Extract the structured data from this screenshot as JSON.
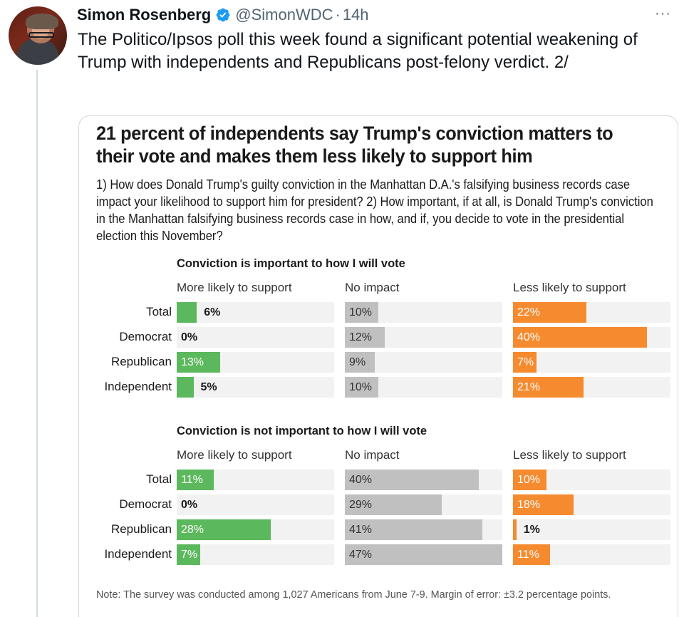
{
  "tweet": {
    "author_name": "Simon Rosenberg",
    "verified": true,
    "handle": "@SimonWDC",
    "separator": "·",
    "time": "14h",
    "more_icon": "···",
    "text": "The Politico/Ipsos poll this week found a significant potential weakening of Trump with independents and Republicans post-felony verdict.  2/"
  },
  "card": {
    "title": "21 percent of independents say Trump's conviction matters to their vote and makes them less likely to support him",
    "subtitle": "1) How does Donald Trump's guilty conviction in the Manhattan D.A.'s falsifying business records case impact your likelihood to support him for president? 2) How important, if at all, is Donald Trump's conviction in the Manhattan falsifying business records case in how, and if, you decide to vote in the presidential election this November?",
    "note": "Note: The survey was conducted among 1,027 Americans from June 7-9. Margin of error: ±3.2 percentage points."
  },
  "colors": {
    "more_likely": "#5cb85c",
    "no_impact": "#c0c0c0",
    "less_likely": "#f68a2f",
    "track": "#f2f2f2"
  },
  "chart_data": {
    "type": "bar",
    "orientation": "horizontal",
    "unit": "%",
    "columns": [
      "More likely to support",
      "No impact",
      "Less likely to support"
    ],
    "categories": [
      "Total",
      "Democrat",
      "Republican",
      "Independent"
    ],
    "panels": [
      {
        "title": "Conviction is important to how I will vote",
        "series": [
          {
            "name": "More likely to support",
            "values": [
              6,
              0,
              13,
              5
            ]
          },
          {
            "name": "No impact",
            "values": [
              10,
              12,
              9,
              10
            ]
          },
          {
            "name": "Less likely to support",
            "values": [
              22,
              40,
              7,
              21
            ]
          }
        ]
      },
      {
        "title": "Conviction is not important to how I will vote",
        "series": [
          {
            "name": "More likely to support",
            "values": [
              11,
              0,
              28,
              7
            ]
          },
          {
            "name": "No impact",
            "values": [
              40,
              29,
              41,
              47
            ]
          },
          {
            "name": "Less likely to support",
            "values": [
              10,
              18,
              1,
              11
            ]
          }
        ]
      }
    ],
    "xlim": [
      0,
      47
    ]
  }
}
